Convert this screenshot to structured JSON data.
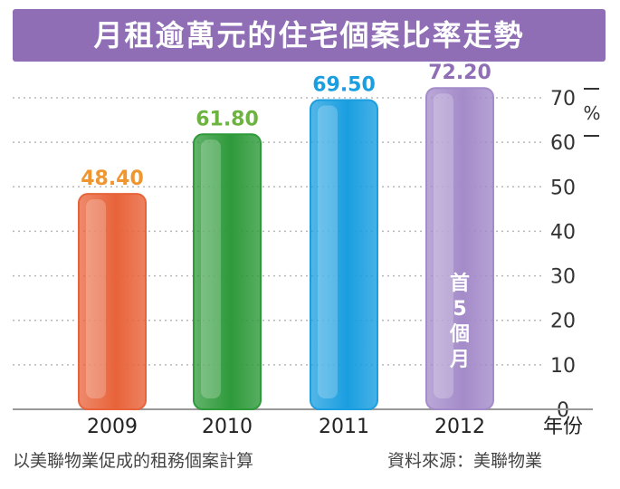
{
  "title": "月租逾萬元的住宅個案比率走勢",
  "chart_data": {
    "type": "bar",
    "title": "月租逾萬元的住宅個案比率走勢",
    "categories": [
      "2009",
      "2010",
      "2011",
      "2012"
    ],
    "values": [
      48.4,
      61.8,
      69.5,
      72.2
    ],
    "value_labels": [
      "48.40",
      "61.80",
      "69.50",
      "72.20"
    ],
    "bar_colors": [
      "#e8633a",
      "#2e9a3a",
      "#1a9ee0",
      "#a48bc9"
    ],
    "label_colors": [
      "#f0962e",
      "#6cb43f",
      "#1a9ee0",
      "#8f6eb5"
    ],
    "ylim": [
      0,
      70
    ],
    "yticks": [
      "0",
      "10",
      "20",
      "30",
      "40",
      "50",
      "60",
      "70"
    ],
    "ylabel": "%",
    "xlabel": "年份",
    "grid": true,
    "annotation": {
      "category": "2012",
      "text": "首5個月"
    }
  },
  "footnote_left": "以美聯物業促成的租務個案計算",
  "footnote_right": "資料來源：美聯物業"
}
